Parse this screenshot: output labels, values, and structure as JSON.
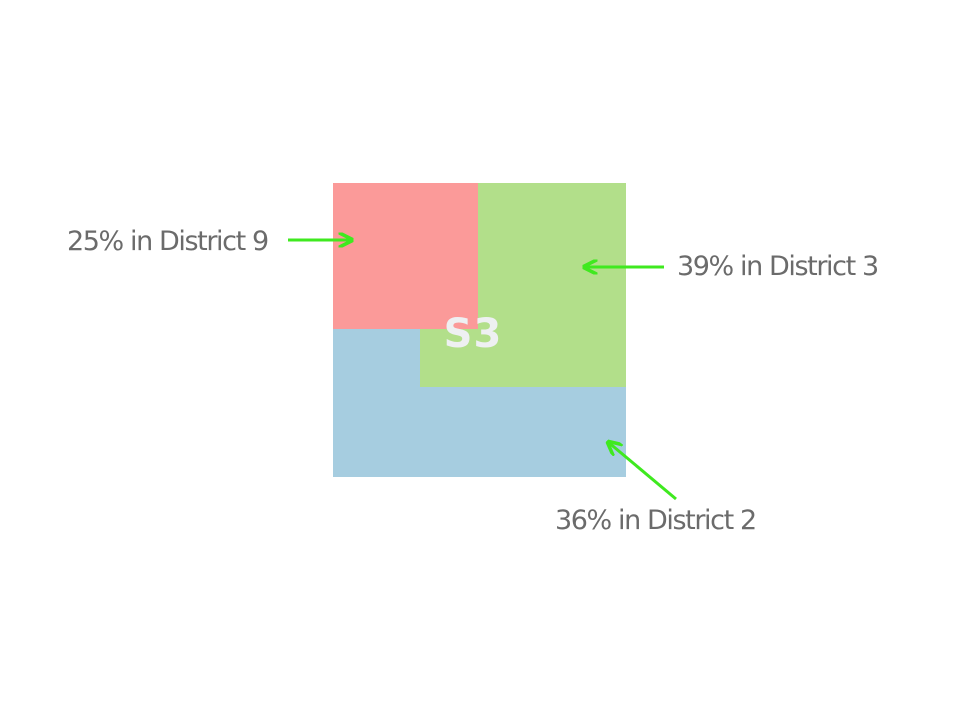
{
  "diagram": {
    "center_label": "S3",
    "center_label_color": "#eef0f2",
    "arrow_color": "#3fe91f",
    "regions": [
      {
        "id": "district-2",
        "color": "#a6cde0"
      },
      {
        "id": "district-3",
        "color": "#b2df8a"
      },
      {
        "id": "district-9",
        "color": "#fb9a99"
      }
    ],
    "callouts": [
      {
        "id": "district-9",
        "text": "25% in District 9",
        "share": 25
      },
      {
        "id": "district-3",
        "text": "39% in District 3",
        "share": 39
      },
      {
        "id": "district-2",
        "text": "36% in District 2",
        "share": 36
      }
    ]
  }
}
